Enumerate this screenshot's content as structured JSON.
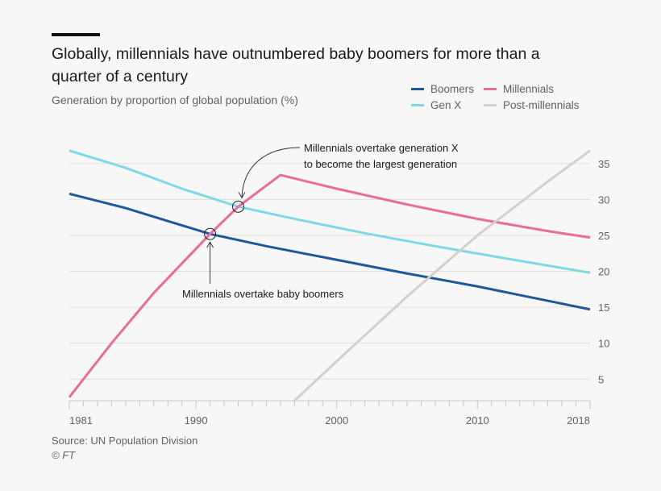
{
  "chart_data": {
    "type": "line",
    "title": "Globally, millennials have outnumbered baby boomers for more than a quarter of a century",
    "subtitle": "Generation by proportion of global population (%)",
    "xlabel": "",
    "ylabel": "",
    "xlim": [
      1981,
      2018
    ],
    "ylim": [
      2,
      37
    ],
    "x_ticks": [
      1981,
      1990,
      2000,
      2010,
      2018
    ],
    "y_ticks": [
      5,
      10,
      15,
      20,
      25,
      30,
      35
    ],
    "grid": true,
    "legend": "top-right",
    "series": [
      {
        "name": "Boomers",
        "color": "#1f5899",
        "points": [
          [
            1981,
            30.8
          ],
          [
            1985,
            28.8
          ],
          [
            1988,
            27.0
          ],
          [
            1991,
            25.2
          ],
          [
            1995,
            23.5
          ],
          [
            2000,
            21.6
          ],
          [
            2005,
            19.7
          ],
          [
            2010,
            17.9
          ],
          [
            2015,
            15.9
          ],
          [
            2018,
            14.7
          ]
        ]
      },
      {
        "name": "Gen X",
        "color": "#7dd9e3",
        "points": [
          [
            1981,
            36.8
          ],
          [
            1985,
            34.4
          ],
          [
            1989,
            31.5
          ],
          [
            1993,
            29.0
          ],
          [
            1997,
            27.3
          ],
          [
            2002,
            25.3
          ],
          [
            2007,
            23.5
          ],
          [
            2012,
            21.8
          ],
          [
            2018,
            19.8
          ]
        ]
      },
      {
        "name": "Millennials",
        "color": "#e86c98",
        "points": [
          [
            1981,
            2.5
          ],
          [
            1984,
            10
          ],
          [
            1987,
            17
          ],
          [
            1991,
            25.2
          ],
          [
            1993,
            29.0
          ],
          [
            1996,
            33.4
          ],
          [
            2000,
            31.5
          ],
          [
            2005,
            29.3
          ],
          [
            2010,
            27.3
          ],
          [
            2015,
            25.6
          ],
          [
            2018,
            24.7
          ]
        ]
      },
      {
        "name": "Post-millennials",
        "color": "#d6d0cb",
        "points": [
          [
            1997,
            2
          ],
          [
            2000,
            7.5
          ],
          [
            2005,
            16.5
          ],
          [
            2010,
            25
          ],
          [
            2015,
            32.5
          ],
          [
            2018,
            36.8
          ]
        ]
      }
    ],
    "annotations": [
      {
        "text": "Millennials overtake generation X to become the largest generation",
        "lines": [
          "Millennials overtake generation X",
          "to become the largest generation"
        ],
        "x": 1993,
        "y": 29.0
      },
      {
        "text": "Millennials overtake baby boomers",
        "x": 1991,
        "y": 25.2
      }
    ],
    "source": "Source: UN Population Division",
    "credit": "© FT"
  }
}
